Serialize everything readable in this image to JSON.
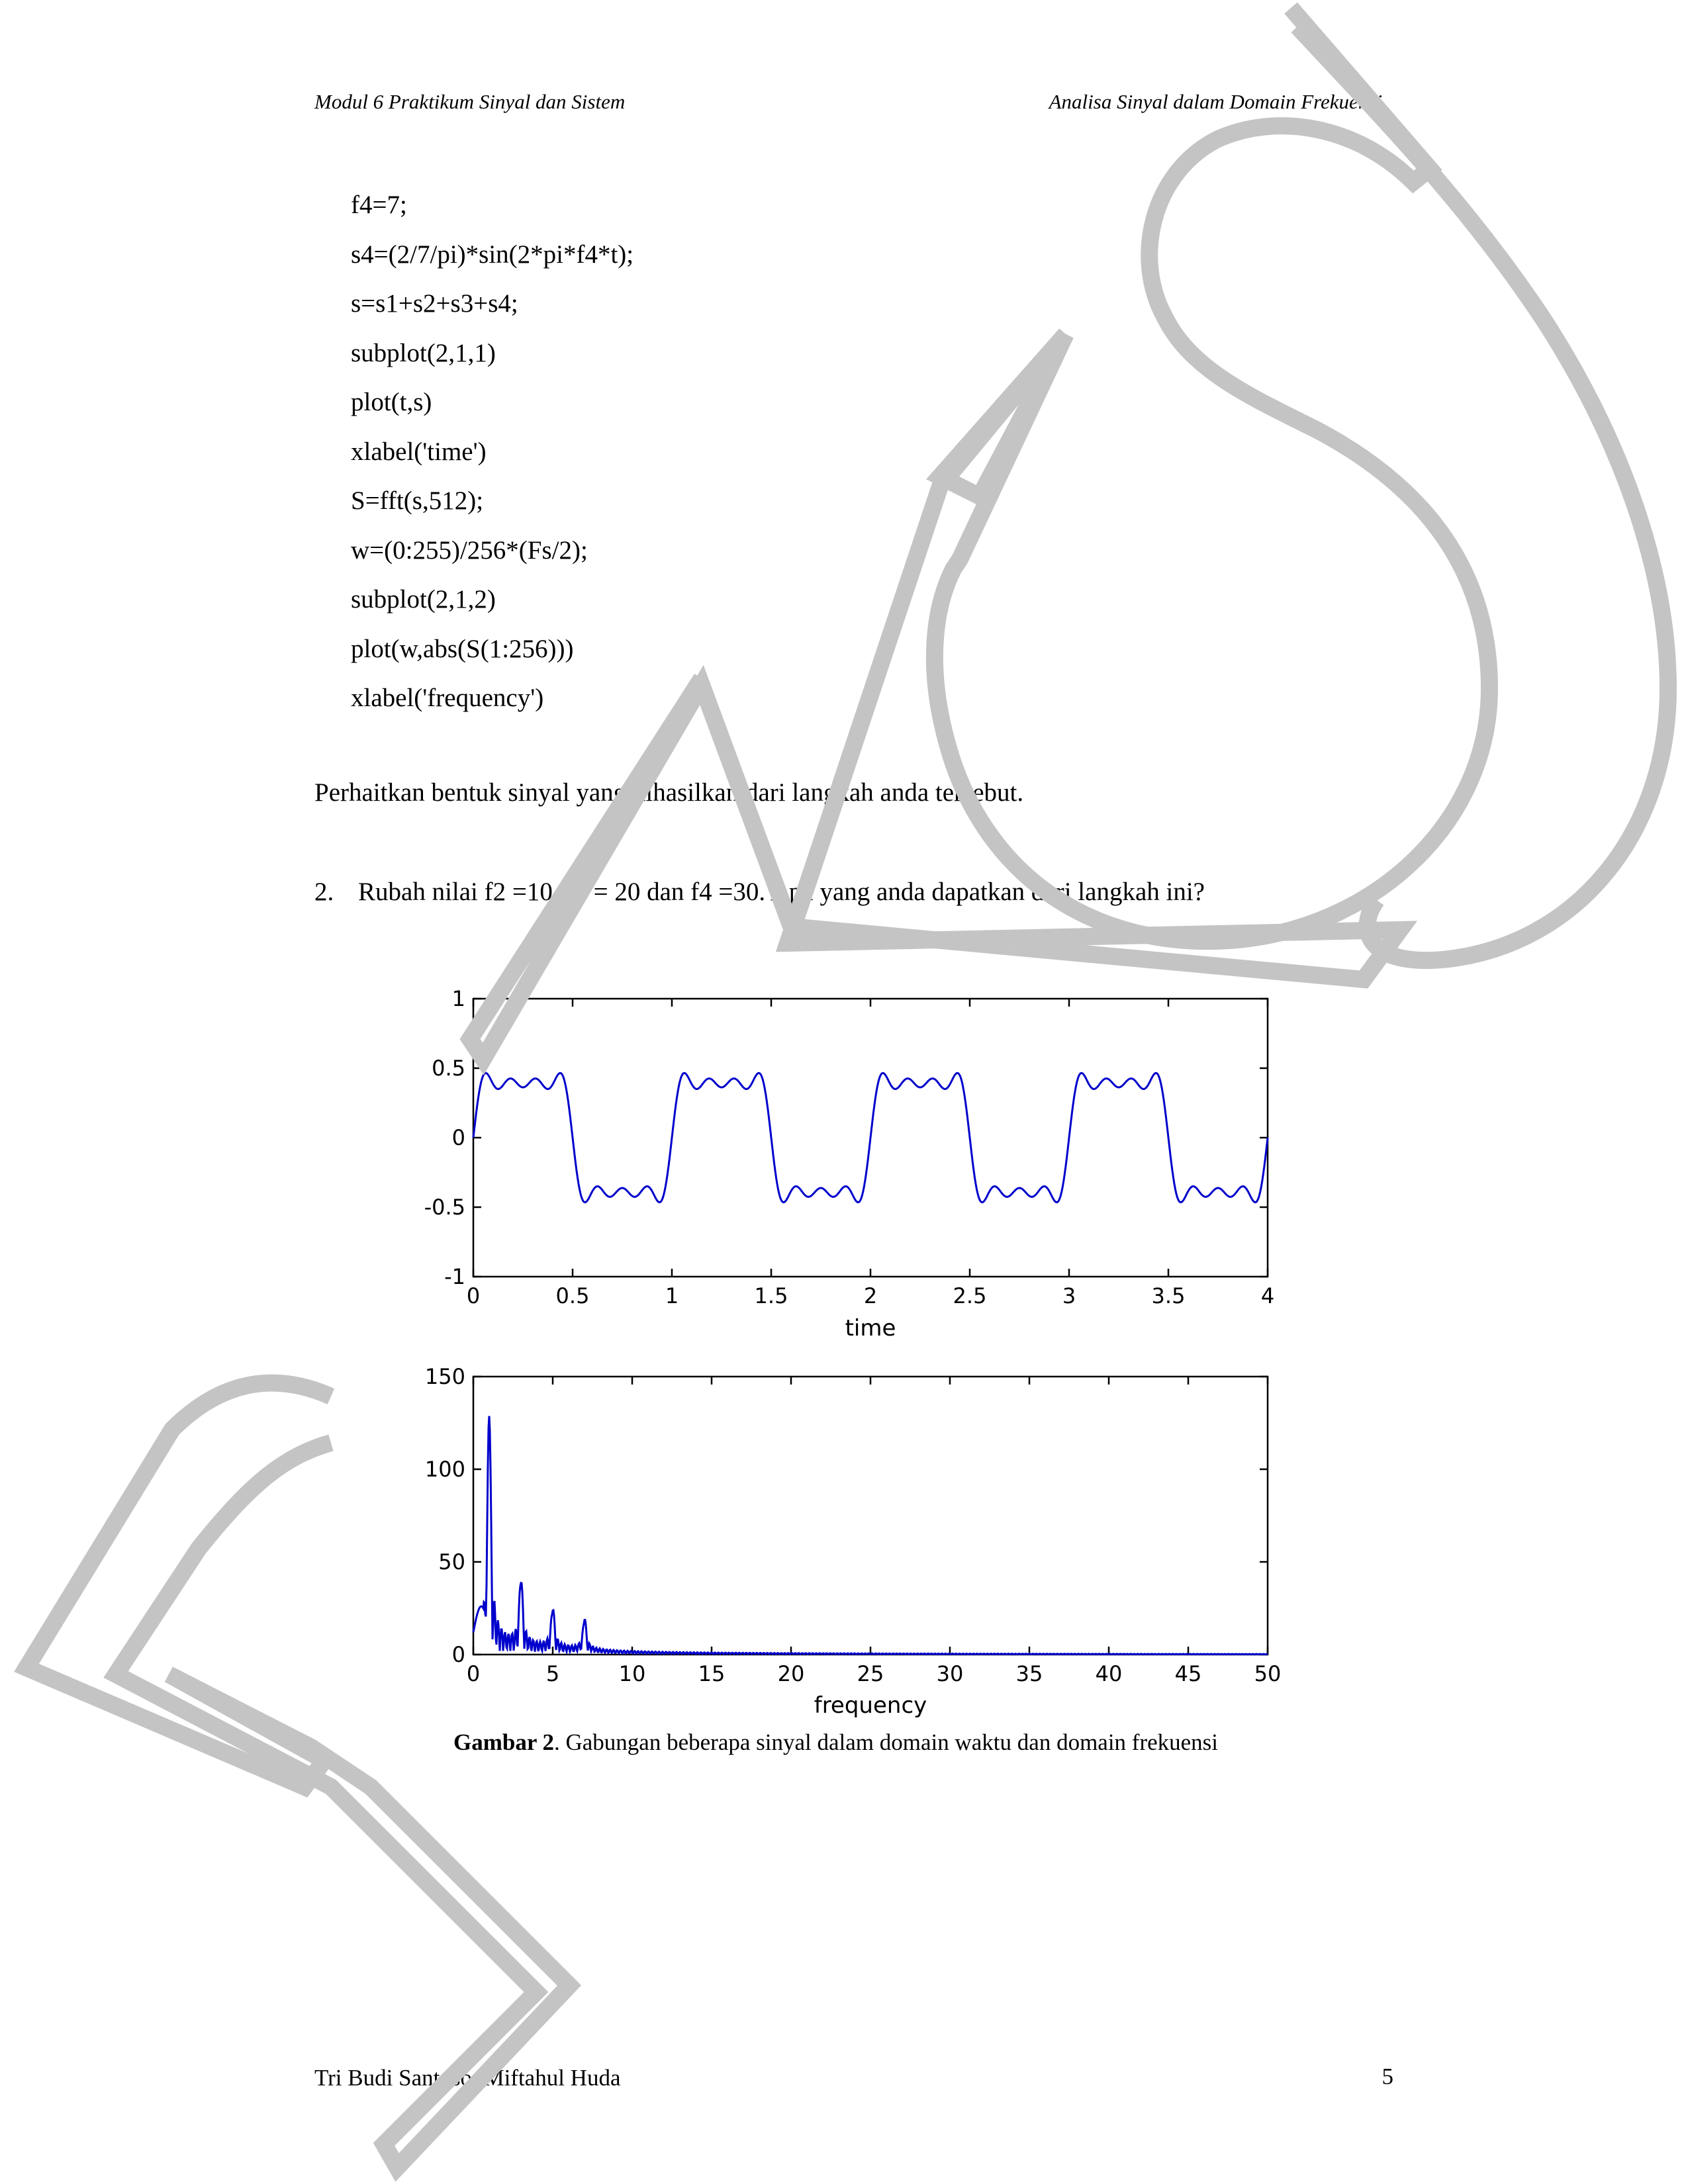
{
  "header": {
    "left": "Modul 6 Praktikum Sinyal dan Sistem",
    "right": "Analisa Sinyal dalam Domain Frekuensi"
  },
  "code_lines": [
    "f4=7;",
    "s4=(2/7/pi)*sin(2*pi*f4*t);",
    "s=s1+s2+s3+s4;",
    "subplot(2,1,1)",
    "plot(t,s)",
    "xlabel('time')",
    "S=fft(s,512);",
    "w=(0:255)/256*(Fs/2);",
    "subplot(2,1,2)",
    "plot(w,abs(S(1:256)))",
    "xlabel('frequency')"
  ],
  "paragraph": "Perhaitkan bentuk sinyal yang dihasilkan dari langkah anda tersebut.",
  "question": {
    "number": "2.",
    "text": "Rubah nilai f2 =10, f3 = 20 dan f4 =30. Apa yang anda dapatkan dari langkah ini?"
  },
  "caption": {
    "label": "Gambar 2",
    "text": ". Gabungan beberapa sinyal dalam domain waktu dan domain frekuensi"
  },
  "footer": {
    "authors": "Tri Budi Santoso, Miftahul Huda",
    "page": "5"
  },
  "colors": {
    "line": "#0000cc",
    "watermark": "#c4c4c4"
  },
  "chart_data": [
    {
      "type": "line",
      "title": "",
      "xlabel": "time",
      "ylabel": "",
      "xlim": [
        0,
        4
      ],
      "ylim": [
        -1,
        1
      ],
      "xticks": [
        "0",
        "0.5",
        "1",
        "1.5",
        "2",
        "2.5",
        "3",
        "3.5",
        "4"
      ],
      "yticks": [
        "1",
        "0.5",
        "0",
        "-0.5",
        "-1"
      ],
      "series": [
        {
          "function": "(4/pi)*[sin(2*pi*1*t) + sin(2*pi*3*t)/3 + sin(2*pi*5*t)/5 + sin(2*pi*7*t)/7]",
          "t_range": [
            0,
            4
          ]
        }
      ]
    },
    {
      "type": "line",
      "title": "",
      "xlabel": "frequency",
      "ylabel": "",
      "xlim": [
        0,
        50
      ],
      "ylim": [
        0,
        150
      ],
      "xticks": [
        "0",
        "5",
        "10",
        "15",
        "20",
        "25",
        "30",
        "35",
        "40",
        "45",
        "50"
      ],
      "yticks": [
        "150",
        "100",
        "50",
        "0"
      ],
      "series": [
        {
          "peaks": [
            {
              "x": 1,
              "y": 128
            },
            {
              "x": 3,
              "y": 37
            },
            {
              "x": 5,
              "y": 22
            },
            {
              "x": 7,
              "y": 17
            }
          ]
        }
      ]
    }
  ]
}
